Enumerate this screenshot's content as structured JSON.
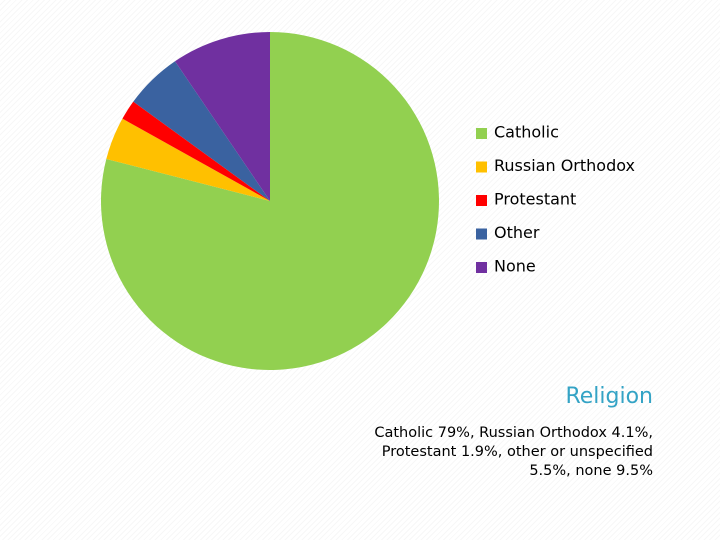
{
  "chart_data": {
    "type": "pie",
    "categories": [
      "Catholic",
      "Russian Orthodox",
      "Protestant",
      "Other",
      "None"
    ],
    "values": [
      79,
      4.1,
      1.9,
      5.5,
      9.5
    ],
    "colors": [
      "#92d050",
      "#ffc000",
      "#ff0000",
      "#3a62a0",
      "#7030a0"
    ],
    "start_angle": 0,
    "direction": "clockwise",
    "legend": "right"
  },
  "slide": {
    "title": "Religion",
    "caption_lines": [
      "Catholic 79%, Russian Orthodox 4.1%,",
      "Protestant 1.9%, other or unspecified",
      "5.5%, none 9.5%"
    ]
  }
}
